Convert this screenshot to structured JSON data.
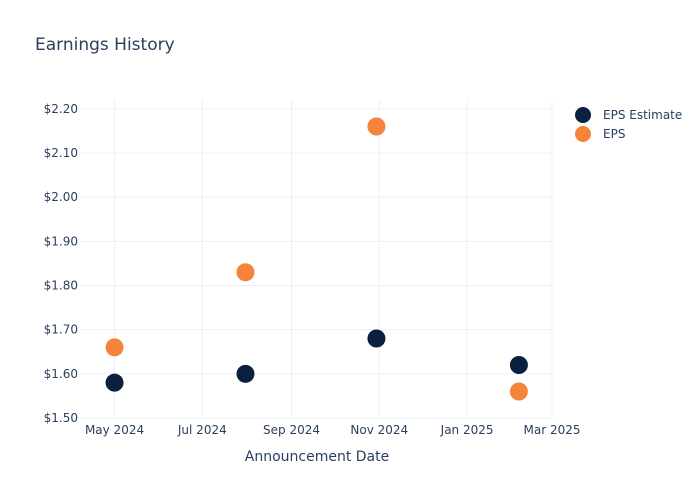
{
  "chart_data": {
    "type": "scatter",
    "title": "Earnings History",
    "xlabel": "Announcement Date",
    "ylabel": "",
    "x_axis": {
      "type": "date",
      "range": [
        "2024-04-07",
        "2025-03-01"
      ],
      "ticks": [
        {
          "date": "2024-05-01",
          "label": "May 2024"
        },
        {
          "date": "2024-07-01",
          "label": "Jul 2024"
        },
        {
          "date": "2024-09-01",
          "label": "Sep 2024"
        },
        {
          "date": "2024-11-01",
          "label": "Nov 2024"
        },
        {
          "date": "2025-01-01",
          "label": "Jan 2025"
        },
        {
          "date": "2025-03-01",
          "label": "Mar 2025"
        }
      ]
    },
    "y_axis": {
      "range": [
        1.5,
        2.22
      ],
      "ticks": [
        1.5,
        1.6,
        1.7,
        1.8,
        1.9,
        2.0,
        2.1,
        2.2
      ],
      "tick_labels": [
        "$1.50",
        "$1.60",
        "$1.70",
        "$1.80",
        "$1.90",
        "$2.00",
        "$2.10",
        "$2.20"
      ]
    },
    "grid": true,
    "legend_position": "top-right",
    "series": [
      {
        "name": "EPS Estimate",
        "color": "#0b1f40",
        "points": [
          {
            "x": "2024-05-01",
            "y": 1.58
          },
          {
            "x": "2024-07-31",
            "y": 1.6
          },
          {
            "x": "2024-10-30",
            "y": 1.68
          },
          {
            "x": "2025-02-06",
            "y": 1.62
          }
        ]
      },
      {
        "name": "EPS",
        "color": "#f5833a",
        "points": [
          {
            "x": "2024-05-01",
            "y": 1.66
          },
          {
            "x": "2024-07-31",
            "y": 1.83
          },
          {
            "x": "2024-10-30",
            "y": 2.16
          },
          {
            "x": "2025-02-06",
            "y": 1.56
          }
        ]
      }
    ]
  }
}
